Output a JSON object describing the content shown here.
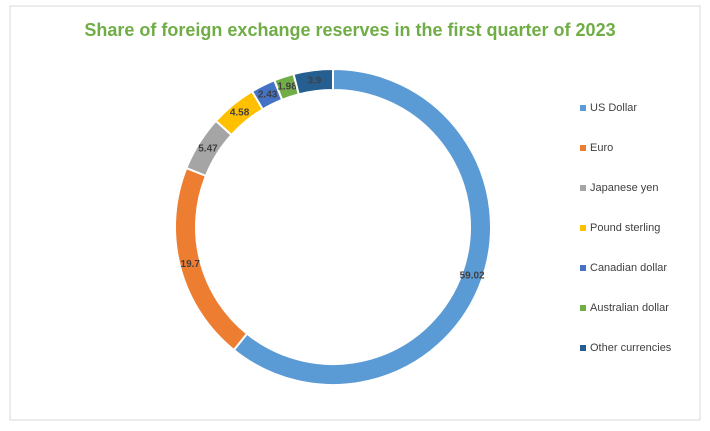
{
  "chart_data": {
    "type": "pie",
    "title": "Share of foreign exchange reserves in the first quarter of 2023",
    "categories": [
      "US Dollar",
      "Euro",
      "Japanese yen",
      "Pound sterling",
      "Canadian dollar",
      "Australian dollar",
      "Other currencies"
    ],
    "values": [
      59.02,
      19.7,
      5.47,
      4.58,
      2.43,
      1.98,
      3.9
    ],
    "colors": [
      "#5b9bd5",
      "#ed7d31",
      "#a5a5a5",
      "#ffc000",
      "#4472c4",
      "#70ad47",
      "#255e91"
    ],
    "donut": true,
    "legend": "right"
  }
}
